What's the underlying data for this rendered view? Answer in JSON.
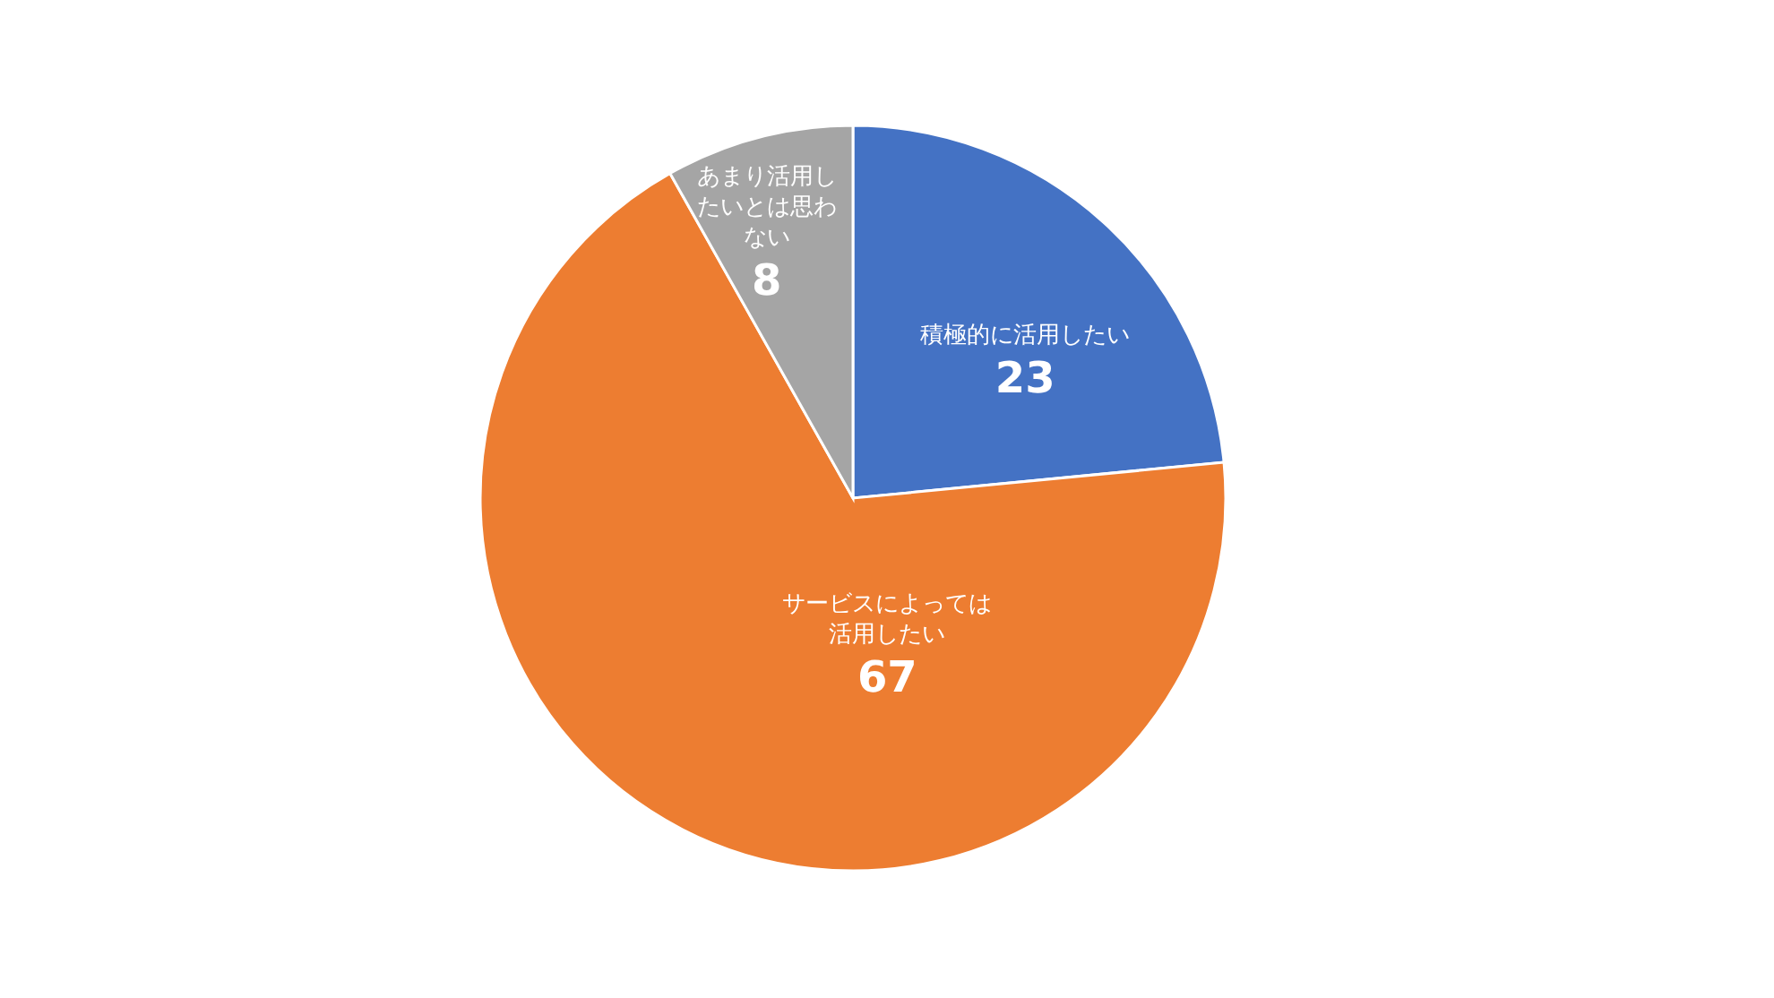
{
  "chart_data": {
    "type": "pie",
    "categories": [
      "積極的に活用したい",
      "サービスによっては活用したい",
      "あまり活用したいとは思わない"
    ],
    "values": [
      23,
      67,
      8
    ],
    "colors": [
      "#4472c4",
      "#ed7d31",
      "#a5a5a5"
    ],
    "data_labels": true
  }
}
